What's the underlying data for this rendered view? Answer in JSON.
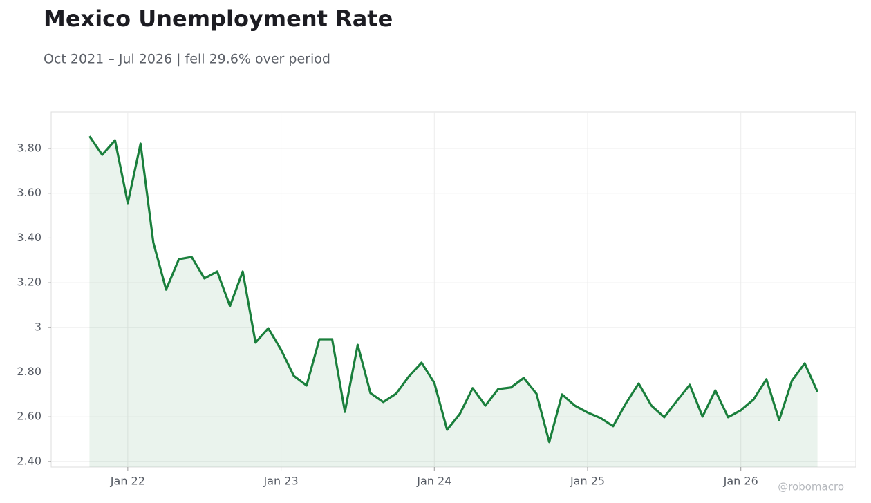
{
  "chart_data": {
    "type": "line",
    "title": "Mexico Unemployment Rate",
    "subtitle": "Oct 2021 – Jul 2026 | fell 29.6% over period",
    "watermark": "@robomacro",
    "color": "#1a7f3c",
    "grid": true,
    "x": [
      "2021-10",
      "2021-11",
      "2021-12",
      "2022-01",
      "2022-02",
      "2022-03",
      "2022-04",
      "2022-05",
      "2022-06",
      "2022-07",
      "2022-08",
      "2022-09",
      "2022-10",
      "2022-11",
      "2022-12",
      "2023-01",
      "2023-02",
      "2023-03",
      "2023-04",
      "2023-05",
      "2023-06",
      "2023-07",
      "2023-08",
      "2023-09",
      "2023-10",
      "2023-11",
      "2023-12",
      "2024-01",
      "2024-02",
      "2024-03",
      "2024-04",
      "2024-05",
      "2024-06",
      "2024-07",
      "2024-08",
      "2024-09",
      "2024-10",
      "2024-11",
      "2024-12",
      "2025-01",
      "2025-02",
      "2025-03",
      "2025-04",
      "2025-05",
      "2025-06",
      "2025-07",
      "2025-08",
      "2025-09",
      "2025-10",
      "2025-11",
      "2025-12",
      "2026-01",
      "2026-02",
      "2026-03",
      "2026-04",
      "2026-05",
      "2026-06",
      "2026-07"
    ],
    "values": [
      3.855,
      3.772,
      3.837,
      3.556,
      3.822,
      3.38,
      3.169,
      3.305,
      3.315,
      3.219,
      3.25,
      3.095,
      3.25,
      2.932,
      2.996,
      2.9,
      2.783,
      2.74,
      2.947,
      2.947,
      2.622,
      2.922,
      2.706,
      2.666,
      2.703,
      2.78,
      2.842,
      2.752,
      2.542,
      2.613,
      2.728,
      2.65,
      2.724,
      2.731,
      2.774,
      2.703,
      2.487,
      2.7,
      2.65,
      2.619,
      2.595,
      2.558,
      2.66,
      2.749,
      2.65,
      2.598,
      2.672,
      2.743,
      2.601,
      2.718,
      2.598,
      2.629,
      2.678,
      2.768,
      2.585,
      2.762,
      2.839,
      2.712
    ],
    "xlim": [
      "2021-07",
      "2026-10"
    ],
    "xticks": [
      {
        "value": "2022-01",
        "label": "Jan 22"
      },
      {
        "value": "2023-01",
        "label": "Jan 23"
      },
      {
        "value": "2024-01",
        "label": "Jan 24"
      },
      {
        "value": "2025-01",
        "label": "Jan 25"
      },
      {
        "value": "2026-01",
        "label": "Jan 26"
      }
    ],
    "ylim": [
      2.375,
      3.964
    ],
    "yticks": [
      {
        "value": 2.4,
        "label": "2.40"
      },
      {
        "value": 2.6,
        "label": "2.60"
      },
      {
        "value": 2.8,
        "label": "2.80"
      },
      3,
      {
        "value": 3.2,
        "label": "3.20"
      },
      {
        "value": 3.4,
        "label": "3.40"
      },
      {
        "value": 3.6,
        "label": "3.60"
      },
      {
        "value": 3.8,
        "label": "3.80"
      }
    ]
  }
}
